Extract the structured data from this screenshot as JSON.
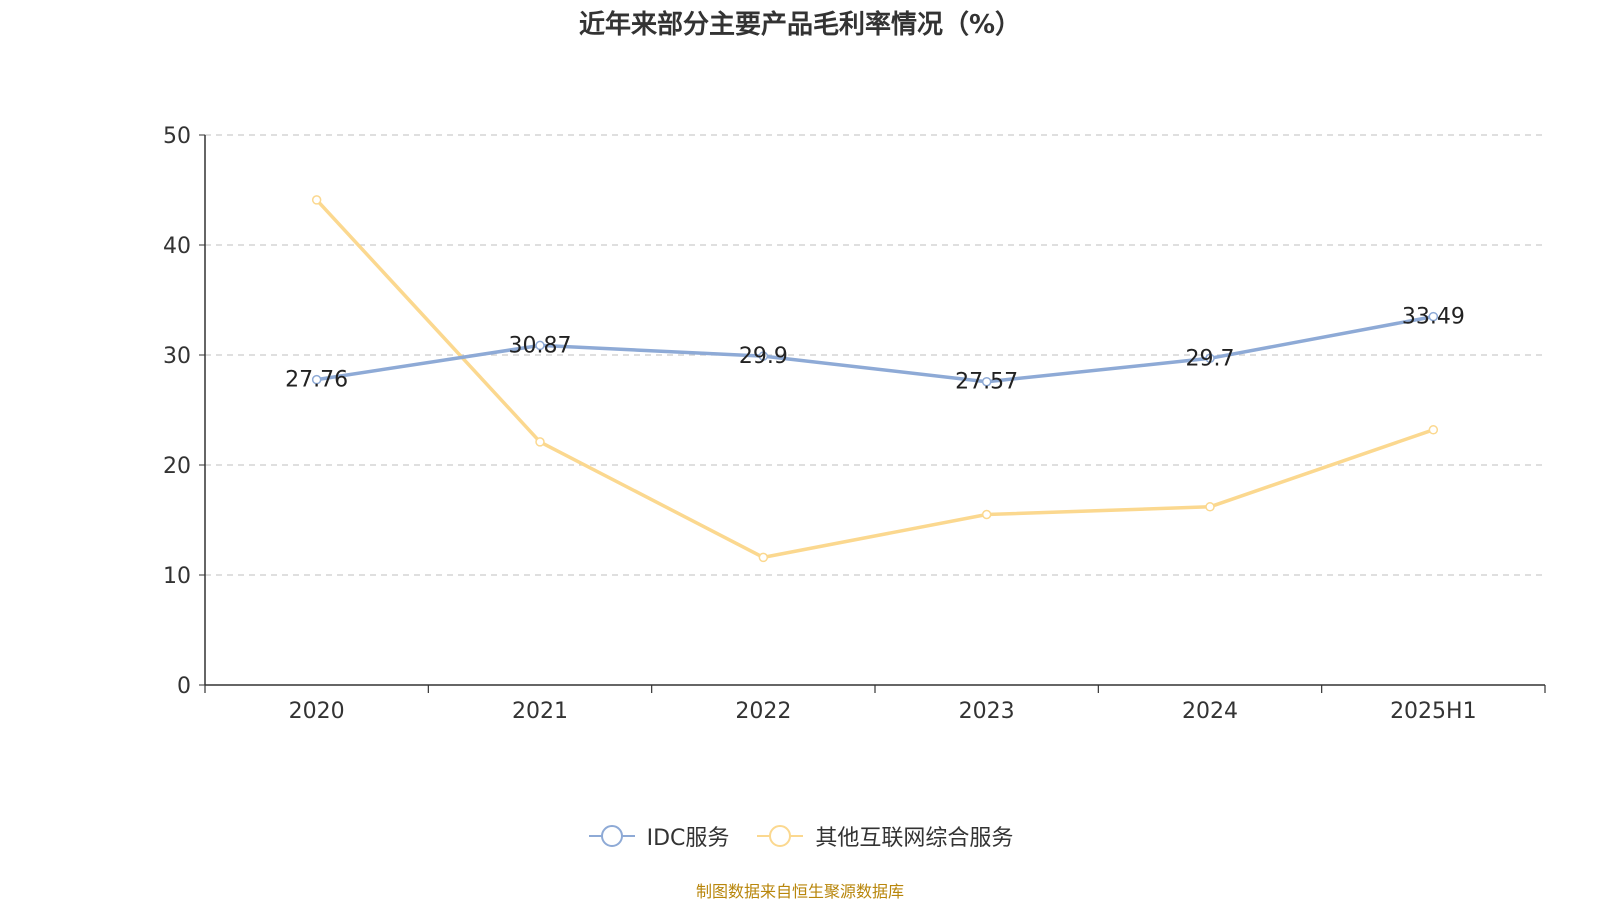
{
  "chart_data": {
    "type": "line",
    "title": "近年来部分主要产品毛利率情况（%）",
    "categories": [
      "2020",
      "2021",
      "2022",
      "2023",
      "2024",
      "2025H1"
    ],
    "ylim": [
      0,
      50
    ],
    "yticks": [
      0,
      10,
      20,
      30,
      40,
      50
    ],
    "grid": true,
    "legend_position": "bottom",
    "series": [
      {
        "name": "IDC服务",
        "color": "#8eaad6",
        "values": [
          27.76,
          30.87,
          29.9,
          27.57,
          29.7,
          33.49
        ],
        "labels": [
          "27.76",
          "30.87",
          "29.9",
          "27.57",
          "29.7",
          "33.49"
        ]
      },
      {
        "name": "其他互联网综合服务",
        "color": "#fbd88f",
        "values": [
          44.1,
          22.1,
          11.6,
          15.5,
          16.2,
          23.2
        ],
        "labels": []
      }
    ]
  },
  "footer": {
    "source": "制图数据来自恒生聚源数据库"
  }
}
